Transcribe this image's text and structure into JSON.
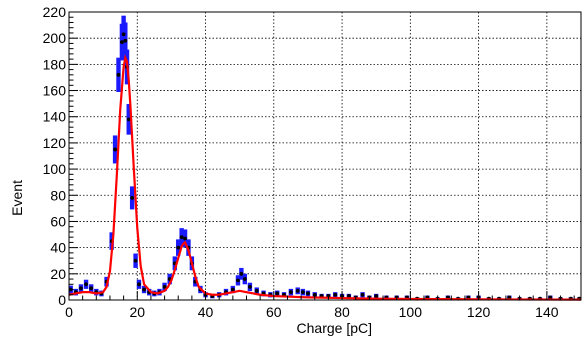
{
  "chart_data": {
    "type": "scatter",
    "title": "",
    "xlabel": "Charge [pC]",
    "ylabel": "Event",
    "xlim": [
      0,
      150
    ],
    "ylim": [
      0,
      220
    ],
    "x_ticks": [
      0,
      20,
      40,
      60,
      80,
      100,
      120,
      140
    ],
    "y_ticks": [
      0,
      20,
      40,
      60,
      80,
      100,
      120,
      140,
      160,
      180,
      200,
      220
    ],
    "grid": true,
    "legend": "none",
    "colors": {
      "data": "#000000",
      "errors": "#1a1aff",
      "fit": "#ff0000"
    },
    "series": [
      {
        "kind": "points",
        "x": [
          0.5,
          2,
          3.5,
          5,
          6.5,
          8,
          9.5,
          11,
          12.5,
          13.5,
          14.5,
          15.5,
          16,
          16.5,
          17,
          17.5,
          18.5,
          19.5,
          20.5,
          22,
          23.5,
          25,
          26.5,
          28,
          29.5,
          31,
          32,
          33,
          34,
          35,
          36,
          37,
          38.5,
          40,
          42,
          44,
          46,
          48,
          49.5,
          50.5,
          51.5,
          53,
          55,
          57,
          59,
          61,
          63,
          65,
          67,
          68.5,
          70,
          72,
          74,
          76,
          78,
          80,
          82,
          84,
          86,
          88,
          90,
          93,
          96,
          99,
          102,
          105,
          108,
          111,
          114,
          117,
          120,
          123,
          126,
          129,
          132,
          135,
          138,
          141,
          144,
          147,
          149.5
        ],
        "y": [
          8,
          6,
          9,
          12,
          9,
          6,
          5,
          14,
          45,
          115,
          172,
          197,
          203,
          198,
          178,
          138,
          78,
          30,
          12,
          8,
          6,
          5,
          6,
          10,
          16,
          28,
          40,
          48,
          47,
          40,
          28,
          14,
          8,
          4,
          3,
          4,
          6,
          8,
          15,
          20,
          16,
          10,
          7,
          5,
          4,
          5,
          4,
          6,
          7,
          6,
          5,
          4,
          3,
          3,
          4,
          3,
          3,
          2,
          4,
          2,
          3,
          2,
          2,
          2,
          1,
          2,
          1,
          2,
          1,
          2,
          2,
          1,
          1,
          2,
          1,
          1,
          1,
          2,
          1,
          1,
          1
        ],
        "err": [
          3,
          2.5,
          3,
          3.5,
          3,
          2.5,
          2.2,
          3.7,
          6.7,
          10.7,
          13.1,
          14,
          14.2,
          14,
          13.3,
          11.7,
          8.8,
          5.5,
          3.5,
          2.8,
          2.5,
          2.2,
          2.5,
          3.2,
          4,
          5.3,
          6.3,
          6.9,
          6.9,
          6.3,
          5.3,
          3.7,
          2.8,
          2,
          1.7,
          2,
          2.5,
          2.8,
          3.9,
          4.5,
          4,
          3.2,
          2.6,
          2.2,
          2,
          2.2,
          2,
          2.5,
          2.6,
          2.5,
          2.2,
          2,
          1.7,
          1.7,
          2,
          1.7,
          1.7,
          1.4,
          2,
          1.4,
          1.7,
          1.4,
          1.4,
          1.4,
          1,
          1.4,
          1,
          1.4,
          1,
          1.4,
          1.4,
          1,
          1,
          1.4,
          1,
          1,
          1,
          1.4,
          1,
          1,
          1
        ]
      },
      {
        "kind": "fit",
        "x": [
          0,
          2,
          4,
          6,
          8,
          10,
          11,
          12,
          13,
          14,
          15,
          16,
          16.5,
          17,
          17.5,
          18,
          19,
          20,
          21,
          22,
          24,
          26,
          28,
          29,
          30,
          31,
          32,
          33,
          33.5,
          34,
          35,
          36,
          37,
          38,
          40,
          42,
          44,
          46,
          48,
          50,
          52,
          54,
          56,
          60,
          70,
          80,
          90,
          100,
          120,
          150
        ],
        "y": [
          4,
          5,
          6,
          6,
          5,
          6,
          10,
          22,
          50,
          95,
          145,
          178,
          185,
          182,
          168,
          148,
          100,
          55,
          26,
          12,
          6,
          5,
          7,
          10,
          15,
          23,
          32,
          41,
          43,
          44,
          38,
          28,
          18,
          10,
          5,
          4,
          4,
          5,
          6,
          7,
          6,
          5,
          4,
          3,
          2,
          1.5,
          1,
          0.8,
          0.5,
          0.3
        ]
      }
    ]
  }
}
